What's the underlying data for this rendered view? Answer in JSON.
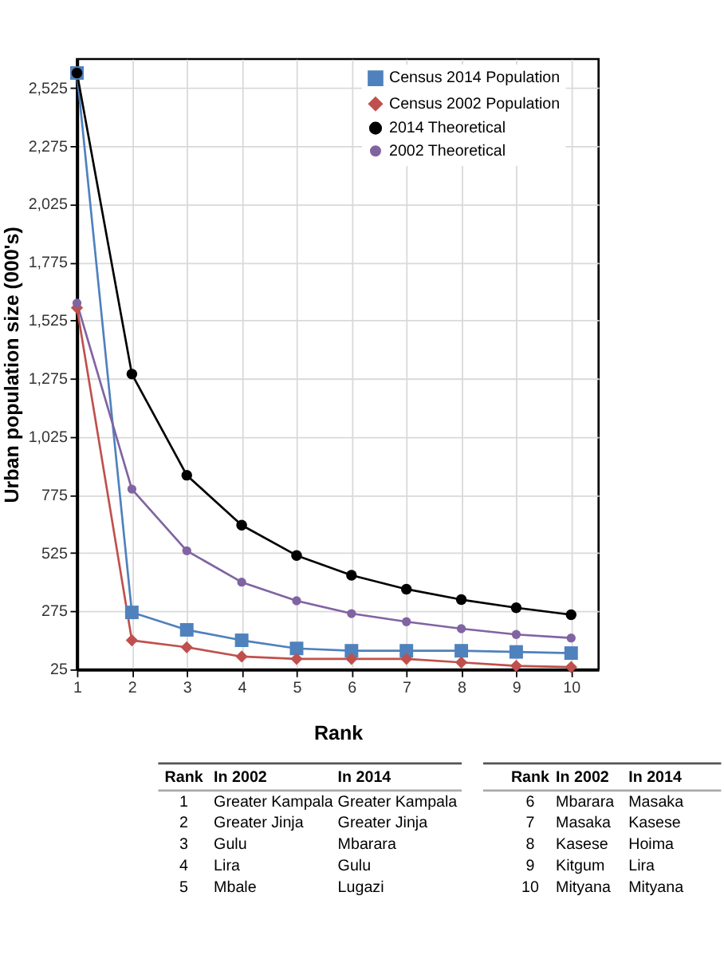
{
  "chart_data": {
    "type": "line",
    "xlabel": "Rank",
    "ylabel": "Urban population size (000's)",
    "x": [
      1,
      2,
      3,
      4,
      5,
      6,
      7,
      8,
      9,
      10
    ],
    "series": [
      {
        "name": "Census 2014 Population",
        "color": "#4f81bd",
        "marker": "square",
        "values": [
          2590,
          270,
          195,
          150,
          115,
          105,
          105,
          105,
          100,
          95
        ]
      },
      {
        "name": "Census 2002 Population",
        "color": "#c0504d",
        "marker": "diamond",
        "values": [
          1580,
          150,
          120,
          80,
          70,
          70,
          70,
          55,
          40,
          35
        ]
      },
      {
        "name": "2014 Theoretical",
        "color": "#000000",
        "marker": "circle",
        "values": [
          2590,
          1295,
          860,
          645,
          515,
          430,
          370,
          325,
          290,
          260
        ]
      },
      {
        "name": "2002 Theoretical",
        "color": "#8064a2",
        "marker": "circle",
        "values": [
          1600,
          800,
          535,
          400,
          320,
          265,
          230,
          200,
          175,
          160
        ]
      }
    ],
    "xlim": [
      1,
      10.5
    ],
    "xticks": [
      1,
      2,
      3,
      4,
      5,
      6,
      7,
      8,
      9,
      10
    ],
    "ylim": [
      25,
      2650
    ],
    "yticks": [
      25,
      {
        "value": 275,
        "label": "275"
      },
      {
        "value": 525,
        "label": "525"
      },
      {
        "value": 775,
        "label": "775"
      },
      {
        "value": 1025,
        "label": "1,025"
      },
      {
        "value": 1275,
        "label": "1,275"
      },
      {
        "value": 1525,
        "label": "1,525"
      },
      {
        "value": 1775,
        "label": "1,775"
      },
      {
        "value": 2025,
        "label": "2,025"
      },
      {
        "value": 2275,
        "label": "2,275"
      },
      {
        "value": 2525,
        "label": "2,525"
      }
    ],
    "grid": true,
    "legend": "top right",
    "line_style": "solid",
    "annotations": [
      "Rank",
      "In 2002",
      "In 2014",
      "1",
      "Greater Kampala",
      "Greater Kampala",
      "2",
      "Greater Jinja",
      "Greater Jinja",
      "3",
      "Gulu",
      "Mbarara",
      "4",
      "Lira",
      "Gulu",
      "5",
      "Mbale",
      "Lugazi",
      "Rank",
      "In 2002",
      "In 2014",
      "6",
      "Mbarara",
      "Masaka",
      "7",
      "Masaka",
      "Kasese",
      "8",
      "Kasese",
      "Hoima",
      "9",
      "Kitgum",
      "Lira",
      "10",
      "Mityana",
      "Mityana"
    ]
  }
}
